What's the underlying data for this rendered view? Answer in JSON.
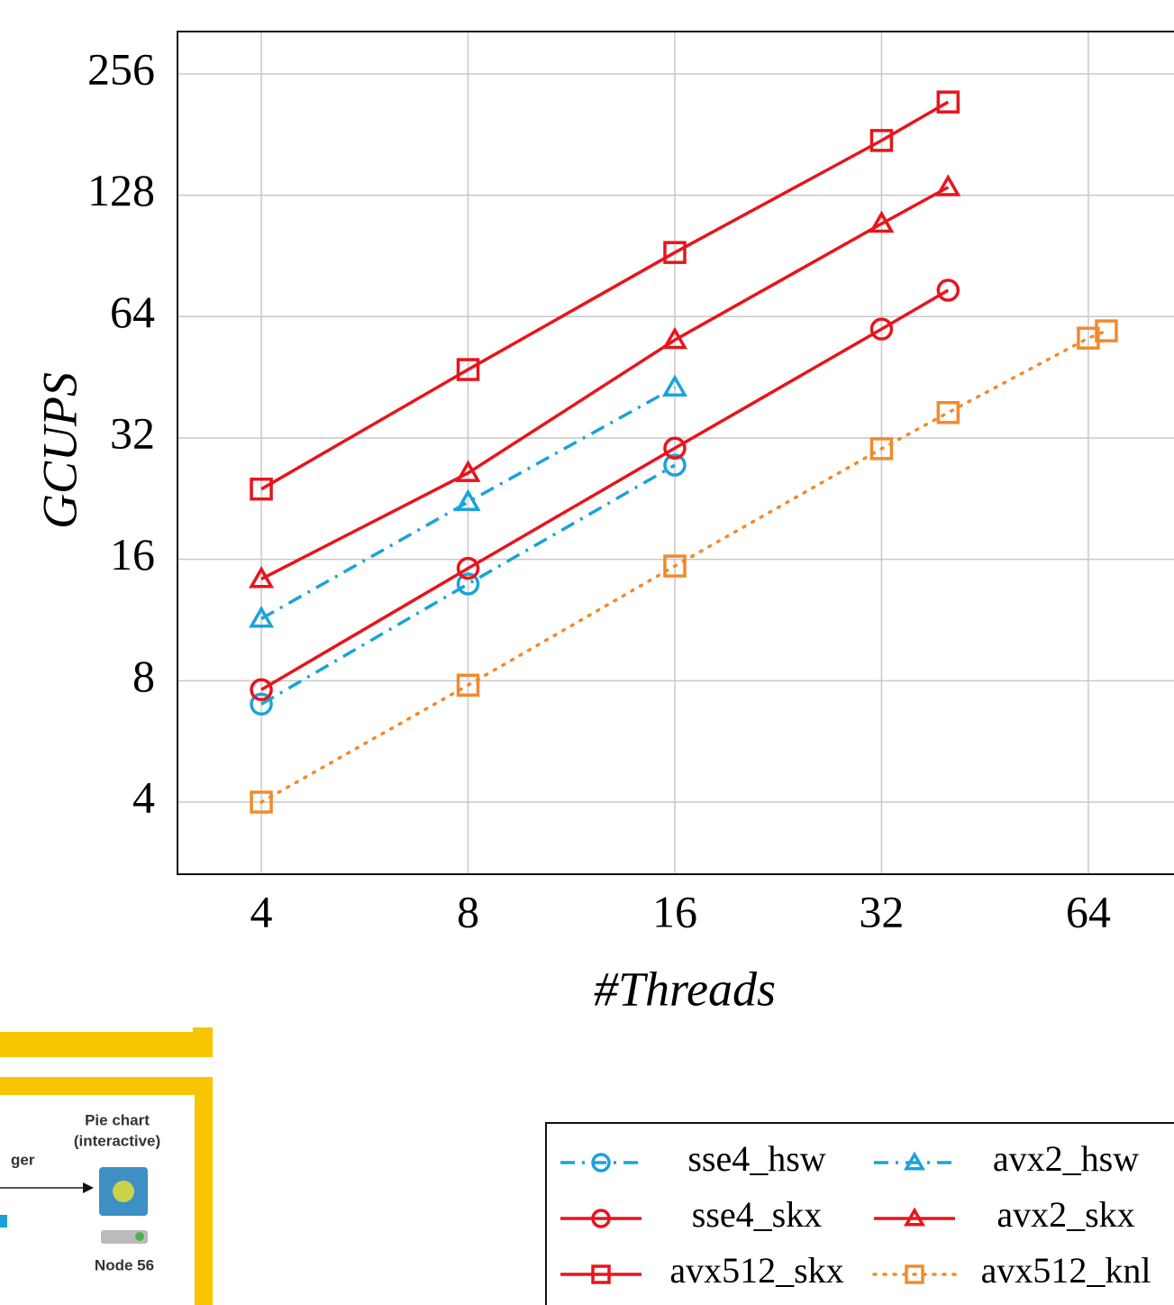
{
  "chart_data": {
    "type": "line",
    "x_label": "#Threads",
    "y_label": "GCUPS",
    "xlog": true,
    "ylog": true,
    "grid": true,
    "xlim": [
      3.02,
      85.3
    ],
    "ylim": [
      2.65,
      326
    ],
    "xticks": [
      4,
      8,
      16,
      32,
      64
    ],
    "yticks": [
      4,
      8,
      16,
      32,
      64,
      128,
      256
    ],
    "legend": "lower right",
    "series": [
      {
        "name": "sse4_hsw",
        "color": "#1aa3d9",
        "line_style": "dashdot",
        "marker": "circle",
        "x": [
          4,
          8,
          16
        ],
        "values": [
          7.0,
          13.9,
          27.4
        ]
      },
      {
        "name": "avx2_hsw",
        "color": "#1aa3d9",
        "line_style": "dashdot",
        "marker": "triangle",
        "x": [
          4,
          8,
          16
        ],
        "values": [
          11.4,
          22.2,
          42.7
        ]
      },
      {
        "name": "sse4_skx",
        "color": "#e8141c",
        "line_style": "solid",
        "marker": "circle",
        "x": [
          4,
          8,
          16,
          32,
          40
        ],
        "values": [
          7.6,
          15.2,
          30.2,
          59.6,
          74.4
        ]
      },
      {
        "name": "avx2_skx",
        "color": "#e8141c",
        "line_style": "solid",
        "marker": "triangle",
        "x": [
          4,
          8,
          16,
          32,
          40
        ],
        "values": [
          14.3,
          26.2,
          56,
          108.8,
          134
        ]
      },
      {
        "name": "avx512_skx",
        "color": "#e8141c",
        "line_style": "solid",
        "marker": "square",
        "x": [
          4,
          8,
          16,
          32,
          40
        ],
        "values": [
          23.9,
          47.3,
          92.3,
          175,
          218
        ]
      },
      {
        "name": "avx512_knl",
        "color": "#f28a2a",
        "line_style": "dotted",
        "marker": "square",
        "x": [
          4,
          8,
          16,
          32,
          40,
          64,
          68
        ],
        "values": [
          4.0,
          7.8,
          15.4,
          30.1,
          37,
          56.6,
          59
        ]
      }
    ]
  },
  "inset": {
    "fragment": "ger",
    "node_title": [
      "Pie chart",
      "(interactive)"
    ],
    "node_name": "Node 56"
  }
}
